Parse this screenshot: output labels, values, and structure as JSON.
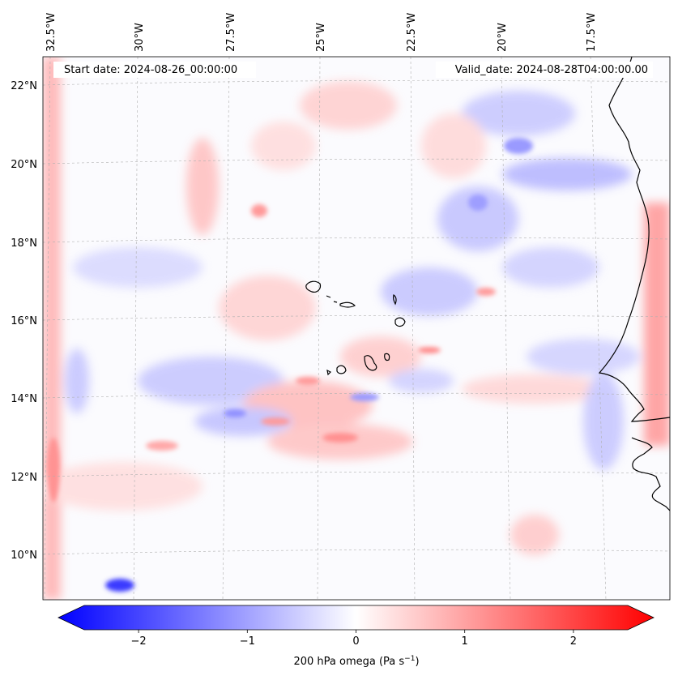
{
  "header": {
    "start_date": "Start date: 2024-08-26_00:00:00",
    "valid_date": "Valid_date: 2024-08-28T04:00:00.00"
  },
  "axes": {
    "lon_ticks": [
      "32.5°W",
      "30°W",
      "27.5°W",
      "25°W",
      "22.5°W",
      "20°W",
      "17.5°W"
    ],
    "lat_ticks": [
      "22°N",
      "20°N",
      "18°N",
      "16°N",
      "14°N",
      "12°N",
      "10°N"
    ]
  },
  "colorbar": {
    "label": "200 hPa omega (Pa s",
    "label_superscript": "−1",
    "label_close": ")",
    "ticks": [
      "−2",
      "−1",
      "0",
      "1",
      "2"
    ],
    "tick_values": [
      -2,
      -1,
      0,
      1,
      2
    ],
    "range": [
      -2.5,
      2.5
    ],
    "colormap": "bwr",
    "colors": {
      "negative": "#0000ff",
      "zero": "#ffffff",
      "positive": "#ff0000"
    }
  },
  "map": {
    "variable": "omega",
    "level": "200 hPa",
    "units": "Pa s^-1",
    "coastline_color": "#000000",
    "gridline_color": "#b0b0b0"
  }
}
